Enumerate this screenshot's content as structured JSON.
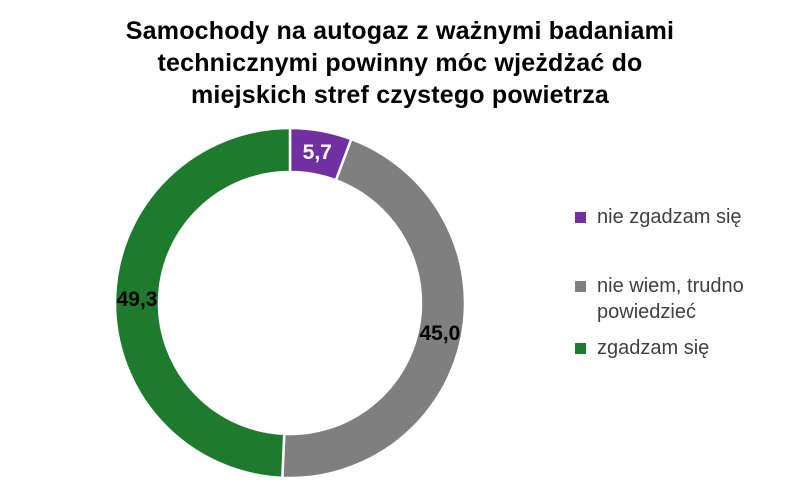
{
  "title": {
    "lines": [
      "Samochody na autogaz z ważnymi badaniami",
      "technicznymi powinny móc wjeżdżać do",
      "miejskich stref czystego powietrza"
    ]
  },
  "chart_data": {
    "type": "pie",
    "subtype": "donut",
    "title": "Samochody na autogaz z ważnymi badaniami technicznymi powinny móc wjeżdżać do miejskich stref czystego powietrza",
    "start_angle_deg": 0,
    "direction": "clockwise",
    "hole_ratio": 0.75,
    "legend_position": "right",
    "background_color": "#FFFFFF",
    "slices": [
      {
        "label": "nie zgadzam się",
        "value": 5.7,
        "value_label": "5,7",
        "color": "#7030A0",
        "label_color": "#FFFFFF"
      },
      {
        "label": "nie wiem, trudno powiedzieć",
        "value": 45.0,
        "value_label": "45,0",
        "color": "#7F7F7F",
        "label_color": "#000000"
      },
      {
        "label": "zgadzam się",
        "value": 49.3,
        "value_label": "49,3",
        "color": "#1E7B2D",
        "label_color": "#000000"
      }
    ]
  }
}
